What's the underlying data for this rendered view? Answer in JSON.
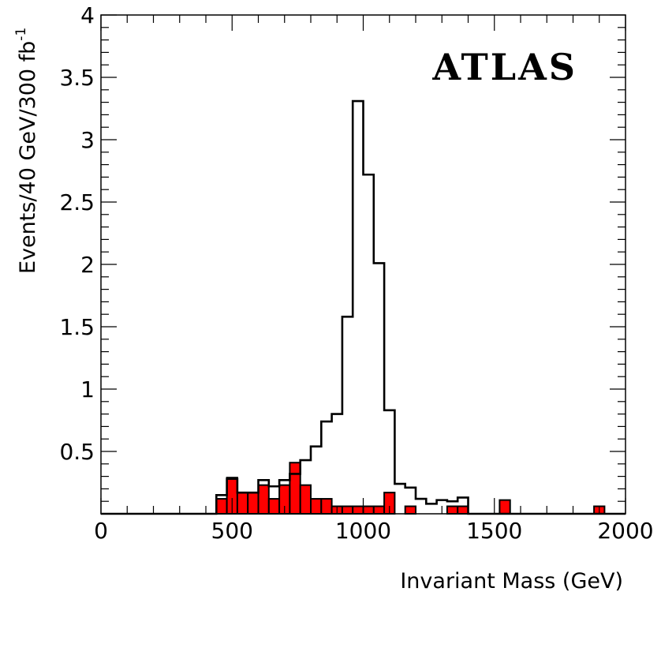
{
  "chart_data": {
    "type": "histogram",
    "label": "ATLAS",
    "xlabel": "Invariant Mass (GeV)",
    "ylabel": "Events/40 GeV/300 fb",
    "ylabel_superscript": "-1",
    "xlim": [
      0,
      2000
    ],
    "ylim": [
      0,
      4
    ],
    "x_ticks": [
      "0",
      "500",
      "1000",
      "1500",
      "2000"
    ],
    "y_ticks": [
      "0.5",
      "1",
      "1.5",
      "2",
      "2.5",
      "3",
      "3.5",
      "4"
    ],
    "bin_width": 40,
    "series": [
      {
        "style": "outline",
        "color": "#000000",
        "bins": [
          {
            "x0": 440,
            "y": 0.15
          },
          {
            "x0": 480,
            "y": 0.28
          },
          {
            "x0": 520,
            "y": 0.17
          },
          {
            "x0": 560,
            "y": 0.17
          },
          {
            "x0": 600,
            "y": 0.27
          },
          {
            "x0": 640,
            "y": 0.22
          },
          {
            "x0": 680,
            "y": 0.27
          },
          {
            "x0": 720,
            "y": 0.32
          },
          {
            "x0": 760,
            "y": 0.43
          },
          {
            "x0": 800,
            "y": 0.54
          },
          {
            "x0": 840,
            "y": 0.74
          },
          {
            "x0": 880,
            "y": 0.8
          },
          {
            "x0": 920,
            "y": 1.58
          },
          {
            "x0": 960,
            "y": 3.31
          },
          {
            "x0": 1000,
            "y": 2.72
          },
          {
            "x0": 1040,
            "y": 2.01
          },
          {
            "x0": 1080,
            "y": 0.83
          },
          {
            "x0": 1120,
            "y": 0.24
          },
          {
            "x0": 1160,
            "y": 0.21
          },
          {
            "x0": 1200,
            "y": 0.12
          },
          {
            "x0": 1240,
            "y": 0.08
          },
          {
            "x0": 1280,
            "y": 0.11
          },
          {
            "x0": 1320,
            "y": 0.1
          },
          {
            "x0": 1360,
            "y": 0.13
          }
        ]
      },
      {
        "style": "filled",
        "color": "#ff0000",
        "bins": [
          {
            "x0": 440,
            "y": 0.12
          },
          {
            "x0": 480,
            "y": 0.29
          },
          {
            "x0": 520,
            "y": 0.17
          },
          {
            "x0": 560,
            "y": 0.17
          },
          {
            "x0": 600,
            "y": 0.23
          },
          {
            "x0": 640,
            "y": 0.12
          },
          {
            "x0": 680,
            "y": 0.23
          },
          {
            "x0": 720,
            "y": 0.41
          },
          {
            "x0": 760,
            "y": 0.23
          },
          {
            "x0": 800,
            "y": 0.12
          },
          {
            "x0": 840,
            "y": 0.12
          },
          {
            "x0": 880,
            "y": 0.06
          },
          {
            "x0": 920,
            "y": 0.06
          },
          {
            "x0": 960,
            "y": 0.06
          },
          {
            "x0": 1000,
            "y": 0.06
          },
          {
            "x0": 1040,
            "y": 0.06
          },
          {
            "x0": 1080,
            "y": 0.17
          },
          {
            "x0": 1160,
            "y": 0.06
          },
          {
            "x0": 1320,
            "y": 0.06
          },
          {
            "x0": 1360,
            "y": 0.06
          },
          {
            "x0": 1520,
            "y": 0.11
          },
          {
            "x0": 1880,
            "y": 0.06
          }
        ]
      }
    ]
  }
}
